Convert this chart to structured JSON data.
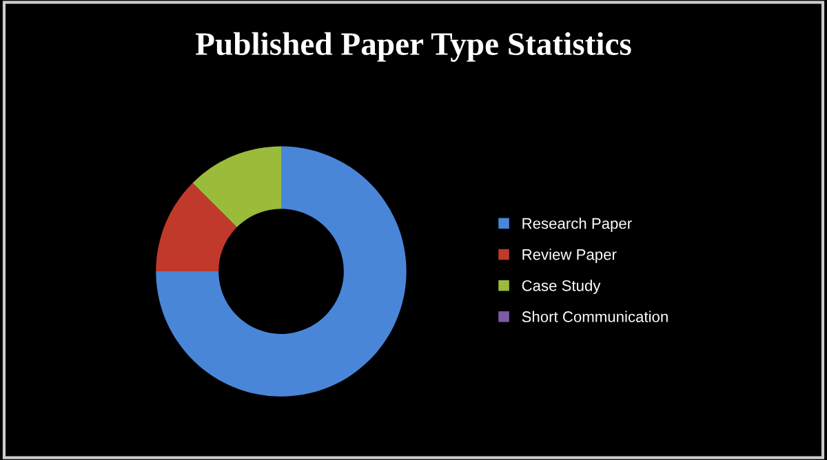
{
  "chart_data": {
    "type": "donut",
    "title": "Published Paper Type Statistics",
    "categories": [
      "Research Paper",
      "Review Paper",
      "Case Study",
      "Short Communication"
    ],
    "values": [
      75,
      12.5,
      12.5,
      0
    ],
    "colors": [
      "#4a86d8",
      "#c0392b",
      "#9bbb3b",
      "#7d5aa6"
    ],
    "legend": "right"
  }
}
